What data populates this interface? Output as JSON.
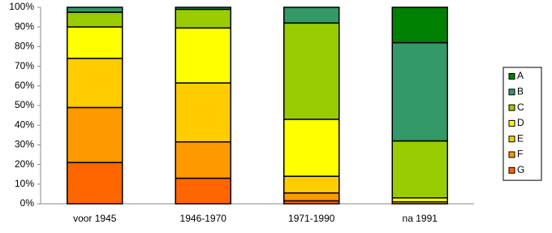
{
  "chart_data": {
    "type": "stacked_bar_100",
    "categories": [
      "voor 1945",
      "1946-1970",
      "1971-1990",
      "na 1991"
    ],
    "series": [
      {
        "name": "G",
        "color": "#ff6600",
        "values": [
          21,
          13,
          1.5,
          0
        ]
      },
      {
        "name": "F",
        "color": "#ff9900",
        "values": [
          28,
          18.5,
          4,
          0
        ]
      },
      {
        "name": "E",
        "color": "#ffcc00",
        "values": [
          25,
          30,
          8.5,
          1
        ]
      },
      {
        "name": "D",
        "color": "#ffff00",
        "values": [
          16,
          28,
          29,
          2
        ]
      },
      {
        "name": "C",
        "color": "#99cc00",
        "values": [
          7.5,
          9.5,
          49,
          29
        ]
      },
      {
        "name": "B",
        "color": "#339966",
        "values": [
          2.5,
          1,
          8,
          50
        ]
      },
      {
        "name": "A",
        "color": "#008000",
        "values": [
          0,
          0,
          0,
          18
        ]
      }
    ],
    "ylim": [
      0,
      100
    ],
    "yticks": [
      {
        "value": 0,
        "label": "0%"
      },
      {
        "value": 10,
        "label": "10%"
      },
      {
        "value": 20,
        "label": "20%"
      },
      {
        "value": 30,
        "label": "30%"
      },
      {
        "value": 40,
        "label": "40%"
      },
      {
        "value": 50,
        "label": "50%"
      },
      {
        "value": 60,
        "label": "60%"
      },
      {
        "value": 70,
        "label": "70%"
      },
      {
        "value": 80,
        "label": "80%"
      },
      {
        "value": 90,
        "label": "90%"
      },
      {
        "value": 100,
        "label": "100%"
      }
    ],
    "legend": "right"
  }
}
